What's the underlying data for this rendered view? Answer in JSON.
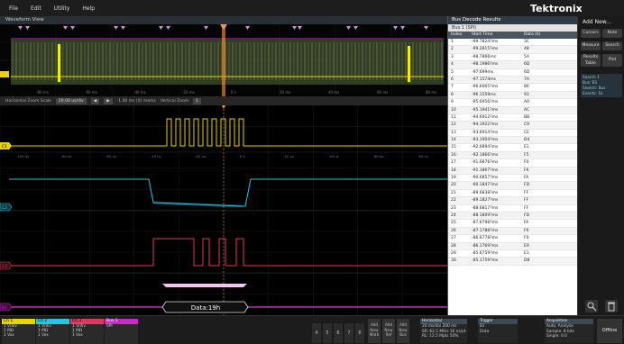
{
  "menu": [
    "File",
    "Edit",
    "Utility",
    "Help"
  ],
  "brand": "Tektronix",
  "waveform_view_title": "Waveform View",
  "overview_time_labels": [
    "-80 ms",
    "-60 ms",
    "-40 ms",
    "-20 ms",
    "0 s",
    "20 ms",
    "40 ms",
    "60 ms",
    "80 ms"
  ],
  "zoombar": {
    "label1": "Horizontal Zoom Scale",
    "value1": "20.00 us/div",
    "label2": "-1.00 ms (X) marks",
    "label3": "Vertical Zoom",
    "value3": "1"
  },
  "main_time_labels": [
    "-100 us",
    "-80 us",
    "-60 us",
    "-40 us",
    "-20 us",
    "0 s",
    "20 us",
    "40 us",
    "60 us",
    "80 us"
  ],
  "channel_tags": [
    "C1",
    "C2",
    "C3",
    "B1"
  ],
  "bus_label": "Data:19h",
  "decode": {
    "title": "Bus Decode Results",
    "tab": "Bus 1 (SPI)",
    "columns": [
      "Index",
      "Start Time",
      "Data (h)"
    ],
    "rows": [
      [
        "1",
        "-99.7824?ms",
        "3C"
      ],
      [
        "2",
        "-99.2815?ms",
        "48"
      ],
      [
        "3",
        "-98.7866ms",
        "5A"
      ],
      [
        "4",
        "-98.1986?ms",
        "6D"
      ],
      [
        "5",
        "-97.699ms",
        "6D"
      ],
      [
        "6",
        "-97.1574ms",
        "7A"
      ],
      [
        "7",
        "-96.6065?ms",
        "86"
      ],
      [
        "8",
        "-96.1559ms",
        "93"
      ],
      [
        "9",
        "-95.6956?ms",
        "A0"
      ],
      [
        "10",
        "-95.1941?ms",
        "AC"
      ],
      [
        "11",
        "-94.6912?ms",
        "BB"
      ],
      [
        "12",
        "-94.1922?ms",
        "C9"
      ],
      [
        "13",
        "-93.6914?ms",
        "CE"
      ],
      [
        "14",
        "-93.1904?ms",
        "D4"
      ],
      [
        "15",
        "-92.6894?ms",
        "E1"
      ],
      [
        "16",
        "-92.1866?ms",
        "F5"
      ],
      [
        "17",
        "-91.6876?ms",
        "F0"
      ],
      [
        "18",
        "-91.1867?ms",
        "F6"
      ],
      [
        "19",
        "-90.6857?ms",
        "FA"
      ],
      [
        "20",
        "-90.1847?ms",
        "FD"
      ],
      [
        "21",
        "-89.6838?ms",
        "FF"
      ],
      [
        "22",
        "-89.1827?ms",
        "FF"
      ],
      [
        "23",
        "-88.6817?ms",
        "FF"
      ],
      [
        "24",
        "-88.1809?ms",
        "FD"
      ],
      [
        "25",
        "-87.6798?ms",
        "FA"
      ],
      [
        "26",
        "-87.1788?ms",
        "F6"
      ],
      [
        "27",
        "-86.6778?ms",
        "F0"
      ],
      [
        "28",
        "-86.1769?ms",
        "E9"
      ],
      [
        "29",
        "-85.6759?ms",
        "E1"
      ],
      [
        "30",
        "-85.1759?ms",
        "D8"
      ]
    ]
  },
  "right_panel": {
    "add_new": "Add New...",
    "buttons": [
      "Cursors",
      "Note",
      "Measure",
      "Search",
      "Results Table",
      "Plot"
    ],
    "info_title": "Search 1",
    "info_lines": [
      "Bus: B1",
      "Search: Bus",
      "Events: 1k"
    ]
  },
  "bottom": {
    "channels": [
      {
        "name": "Ch 1",
        "color": "#e8d200",
        "lines": [
          "1 V/div",
          "1 MΩ",
          "1 Vox"
        ]
      },
      {
        "name": "Ch 2",
        "color": "#27c3e0",
        "lines": [
          "1 V/div",
          "1 MΩ",
          "1 Vox"
        ]
      },
      {
        "name": "Ch 3",
        "color": "#e0375f",
        "lines": [
          "1 V/div",
          "1 MΩ",
          "1 Vox"
        ]
      },
      {
        "name": "Bus 1",
        "color": "#c42bc4",
        "lines": [
          "SPI",
          "",
          ""
        ]
      }
    ],
    "numbers": [
      "4",
      "5",
      "6",
      "7",
      "8"
    ],
    "add_buttons": [
      "Add New Math",
      "Add New Ref",
      "Add New Bus"
    ],
    "horizontal": {
      "title": "Horizontal",
      "lines": [
        "20 ms/div",
        "200 ms",
        "SR: 62.5 MS/s",
        "16 ns/pt",
        "RL: 12.5 Mpts",
        "50%"
      ]
    },
    "trigger": {
      "title": "Trigger",
      "lines": [
        "B1",
        "Data"
      ]
    },
    "acquisition": {
      "title": "Acquisition",
      "lines": [
        "Auto,",
        "Analyze",
        "Sample: 8 bits",
        "Single: 0.0"
      ]
    },
    "offline": "Offline"
  },
  "colors": {
    "ch1": "#e8d200",
    "ch2": "#27c3e0",
    "ch3": "#e0375f",
    "bus": "#c42bc4"
  }
}
